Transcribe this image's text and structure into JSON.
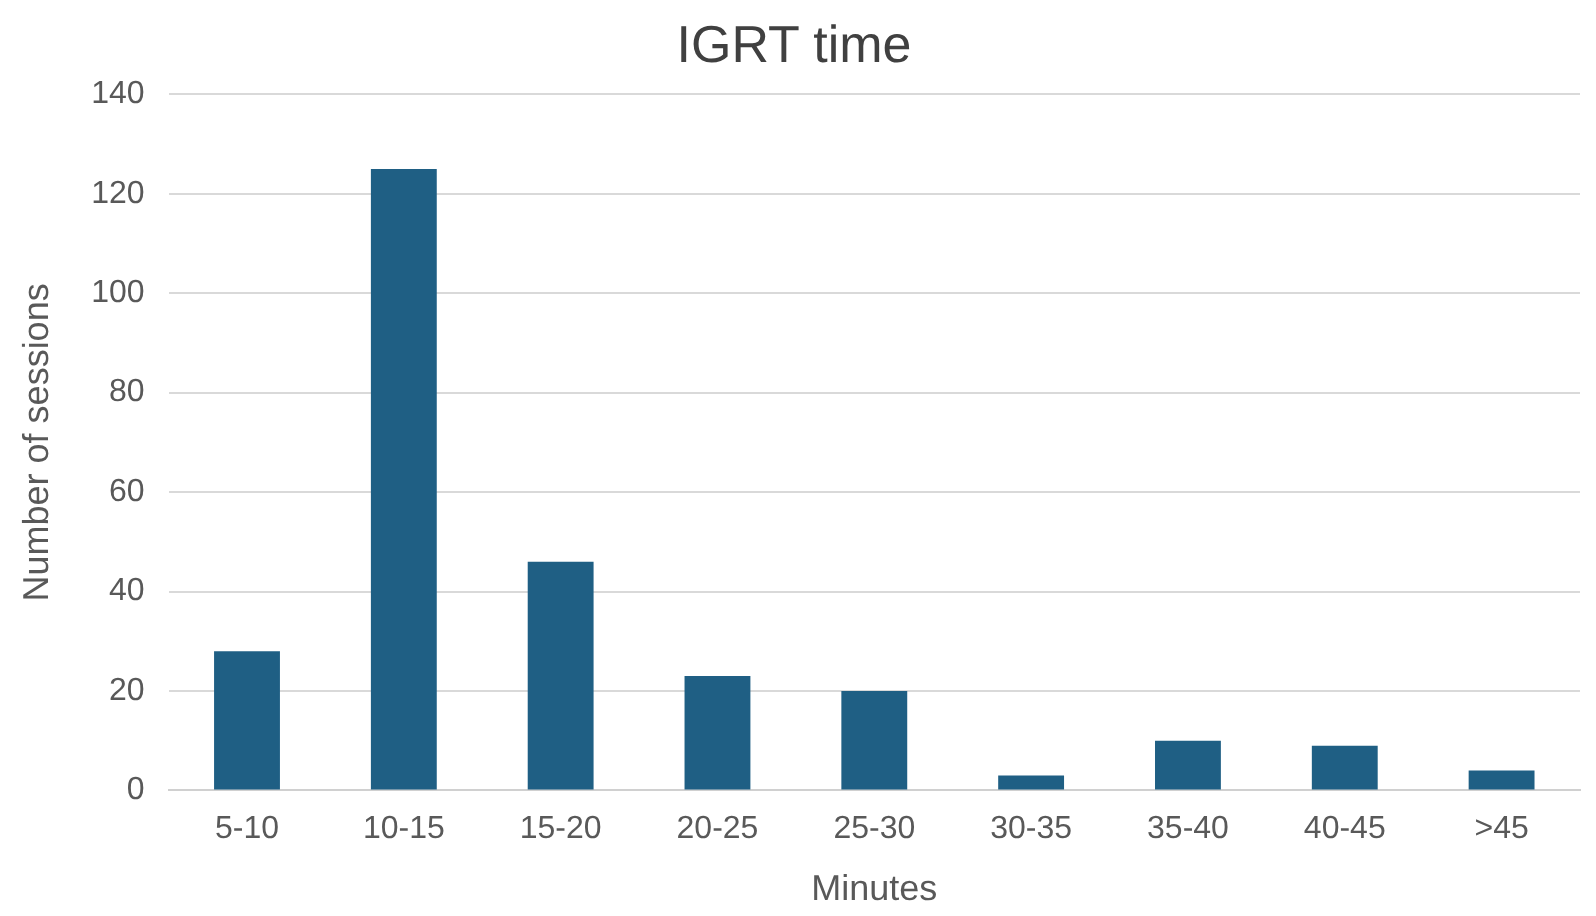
{
  "chart_data": {
    "type": "bar",
    "title": "IGRT time",
    "xlabel": "Minutes",
    "ylabel": "Number of sessions",
    "categories": [
      "5-10",
      "10-15",
      "15-20",
      "20-25",
      "25-30",
      "30-35",
      "35-40",
      "40-45",
      ">45"
    ],
    "values": [
      28,
      125,
      46,
      23,
      20,
      3,
      10,
      9,
      4
    ],
    "color": "#1f5f84",
    "ylim": [
      0,
      140
    ],
    "yticks": [
      0,
      20,
      40,
      60,
      80,
      100,
      120,
      140
    ],
    "grid": "y"
  }
}
